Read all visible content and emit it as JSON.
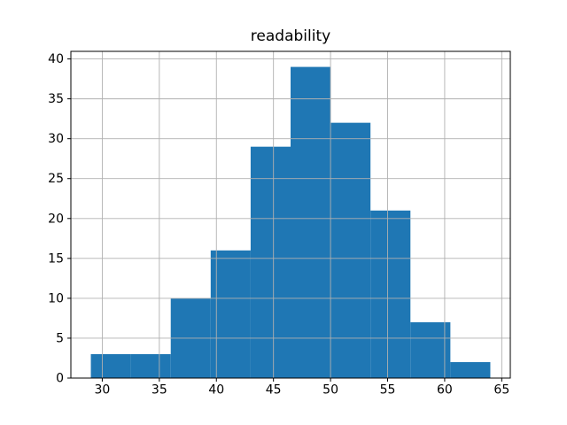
{
  "chart_data": {
    "type": "bar",
    "subtype": "histogram",
    "title": "readability",
    "xlabel": "",
    "ylabel": "",
    "bin_edges": [
      29,
      32.5,
      36,
      39.5,
      43,
      46.5,
      50,
      53.5,
      57,
      60.5,
      64
    ],
    "values": [
      3,
      3,
      10,
      16,
      29,
      39,
      32,
      21,
      7,
      2
    ],
    "xlim": [
      27.25,
      65.75
    ],
    "ylim": [
      0,
      40.95
    ],
    "xticks": [
      30,
      35,
      40,
      45,
      50,
      55,
      60,
      65
    ],
    "yticks": [
      0,
      5,
      10,
      15,
      20,
      25,
      30,
      35,
      40
    ],
    "grid": true,
    "grid_over_bars": true,
    "legend_position": "none",
    "colors": {
      "bar": "#1f77b4",
      "grid": "#b0b0b0",
      "axis": "#000000",
      "background": "#ffffff",
      "text": "#000000"
    }
  }
}
